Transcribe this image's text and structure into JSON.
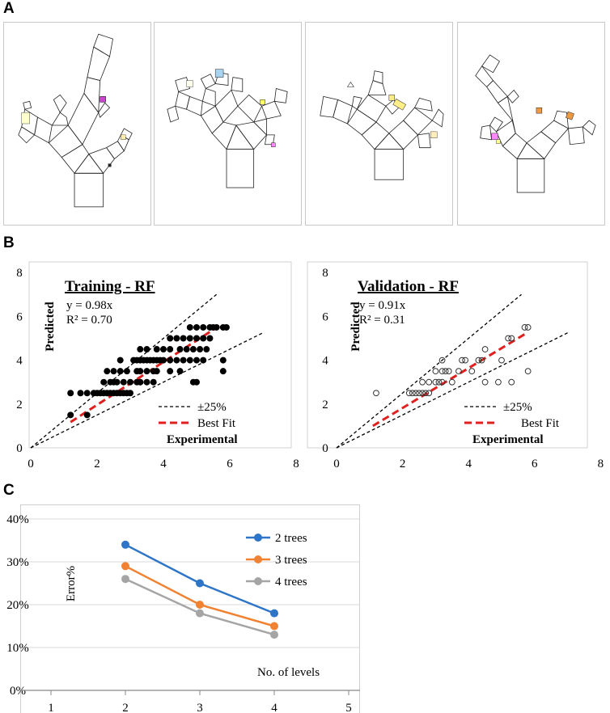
{
  "panels": {
    "a": "A",
    "b": "B",
    "c": "C"
  },
  "tree_images": [
    {
      "name": "tree-image-1",
      "highlight_colors": [
        "#cc44cc",
        "#ffffcc",
        "#ffeeaa"
      ]
    },
    {
      "name": "tree-image-2",
      "highlight_colors": [
        "#a8d4f0",
        "#ffff66",
        "#ff88ff"
      ]
    },
    {
      "name": "tree-image-3",
      "highlight_colors": [
        "#ffee88",
        "#ffffff",
        "#ffeebb"
      ]
    },
    {
      "name": "tree-image-4",
      "highlight_colors": [
        "#ff88ff",
        "#ee9944",
        "#ee9944"
      ]
    }
  ],
  "chart_data": [
    {
      "type": "scatter",
      "title": "Training - RF",
      "xlabel": "Experimental",
      "ylabel": "Predicted",
      "equation": "y = 0.98x",
      "r2": "R² = 0.70",
      "slope": 0.98,
      "xlim": [
        0,
        8
      ],
      "ylim": [
        0,
        8
      ],
      "xticks": [
        "0",
        "2",
        "4",
        "6",
        "8"
      ],
      "yticks": [
        "0",
        "2",
        "4",
        "6",
        "8"
      ],
      "marker": "filled",
      "legend": [
        {
          "label": "±25%",
          "style": "black-dashed"
        },
        {
          "label": "Best Fit",
          "style": "red-dashed"
        }
      ],
      "best_fit_range": [
        1.2,
        5.7
      ],
      "points": [
        [
          1.2,
          1.5
        ],
        [
          1.2,
          2.5
        ],
        [
          1.5,
          2.5
        ],
        [
          1.7,
          2.5
        ],
        [
          1.7,
          1.5
        ],
        [
          1.9,
          2.5
        ],
        [
          2.0,
          2.5
        ],
        [
          2.1,
          2.5
        ],
        [
          2.2,
          2.5
        ],
        [
          2.3,
          2.5
        ],
        [
          2.4,
          2.5
        ],
        [
          2.5,
          2.5
        ],
        [
          2.6,
          2.5
        ],
        [
          2.7,
          2.5
        ],
        [
          2.8,
          2.5
        ],
        [
          2.9,
          2.5
        ],
        [
          3.0,
          2.5
        ],
        [
          2.2,
          3.0
        ],
        [
          2.4,
          3.0
        ],
        [
          2.5,
          3.0
        ],
        [
          2.6,
          3.0
        ],
        [
          2.8,
          3.0
        ],
        [
          3.0,
          3.0
        ],
        [
          3.2,
          3.0
        ],
        [
          3.3,
          3.0
        ],
        [
          3.5,
          3.0
        ],
        [
          3.7,
          3.0
        ],
        [
          2.3,
          3.5
        ],
        [
          2.5,
          3.5
        ],
        [
          2.7,
          3.5
        ],
        [
          2.9,
          3.5
        ],
        [
          3.2,
          3.5
        ],
        [
          3.3,
          3.5
        ],
        [
          3.5,
          3.5
        ],
        [
          3.7,
          3.5
        ],
        [
          3.8,
          3.5
        ],
        [
          4.2,
          3.5
        ],
        [
          4.5,
          3.5
        ],
        [
          2.7,
          4.0
        ],
        [
          3.1,
          4.0
        ],
        [
          3.2,
          4.0
        ],
        [
          3.3,
          4.0
        ],
        [
          3.4,
          4.0
        ],
        [
          3.5,
          4.0
        ],
        [
          3.6,
          4.0
        ],
        [
          3.7,
          4.0
        ],
        [
          3.8,
          4.0
        ],
        [
          3.9,
          4.0
        ],
        [
          4.0,
          4.0
        ],
        [
          4.2,
          4.0
        ],
        [
          4.4,
          4.0
        ],
        [
          4.6,
          4.0
        ],
        [
          4.8,
          4.0
        ],
        [
          5.0,
          4.0
        ],
        [
          5.2,
          4.0
        ],
        [
          3.3,
          4.5
        ],
        [
          3.5,
          4.5
        ],
        [
          3.8,
          4.5
        ],
        [
          4.0,
          4.5
        ],
        [
          4.2,
          4.5
        ],
        [
          4.5,
          4.5
        ],
        [
          4.7,
          4.5
        ],
        [
          4.9,
          4.5
        ],
        [
          5.1,
          4.5
        ],
        [
          5.3,
          4.5
        ],
        [
          4.2,
          5.0
        ],
        [
          4.4,
          5.0
        ],
        [
          4.6,
          5.0
        ],
        [
          4.8,
          5.0
        ],
        [
          5.0,
          5.0
        ],
        [
          5.2,
          5.0
        ],
        [
          5.4,
          5.0
        ],
        [
          4.8,
          5.5
        ],
        [
          5.0,
          5.5
        ],
        [
          5.2,
          5.5
        ],
        [
          5.4,
          5.5
        ],
        [
          5.5,
          5.5
        ],
        [
          5.6,
          5.5
        ],
        [
          5.8,
          5.5
        ],
        [
          5.9,
          5.5
        ],
        [
          3.3,
          3.0
        ],
        [
          4.9,
          3.0
        ],
        [
          5.0,
          3.0
        ],
        [
          5.8,
          3.5
        ],
        [
          5.8,
          4.0
        ]
      ]
    },
    {
      "type": "scatter",
      "title": "Validation - RF",
      "xlabel": "Experimental",
      "ylabel": "Predicted",
      "equation": "y = 0.91x",
      "r2": "R² = 0.31",
      "slope": 0.91,
      "xlim": [
        0,
        8
      ],
      "ylim": [
        0,
        8
      ],
      "xticks": [
        "0",
        "2",
        "4",
        "6",
        "8"
      ],
      "yticks": [
        "0",
        "2",
        "4",
        "6",
        "8"
      ],
      "marker": "hollow",
      "legend": [
        {
          "label": "±25%",
          "style": "black-dashed"
        },
        {
          "label": "Best Fit",
          "style": "red-dashed"
        }
      ],
      "best_fit_range": [
        1.1,
        5.8
      ],
      "points": [
        [
          1.2,
          2.5
        ],
        [
          2.2,
          2.5
        ],
        [
          2.3,
          2.5
        ],
        [
          2.4,
          2.5
        ],
        [
          2.5,
          2.5
        ],
        [
          2.6,
          2.5
        ],
        [
          2.7,
          2.5
        ],
        [
          2.8,
          2.5
        ],
        [
          2.6,
          3.0
        ],
        [
          2.8,
          3.0
        ],
        [
          3.0,
          3.0
        ],
        [
          3.1,
          3.0
        ],
        [
          3.2,
          3.0
        ],
        [
          3.5,
          3.0
        ],
        [
          4.5,
          3.0
        ],
        [
          4.9,
          3.0
        ],
        [
          5.3,
          3.0
        ],
        [
          3.0,
          3.5
        ],
        [
          3.2,
          3.5
        ],
        [
          3.3,
          3.5
        ],
        [
          3.4,
          3.5
        ],
        [
          3.7,
          3.5
        ],
        [
          4.1,
          3.5
        ],
        [
          5.8,
          3.5
        ],
        [
          3.2,
          4.0
        ],
        [
          3.8,
          4.0
        ],
        [
          3.9,
          4.0
        ],
        [
          4.3,
          4.0
        ],
        [
          4.4,
          4.0
        ],
        [
          5.0,
          4.0
        ],
        [
          4.5,
          4.5
        ],
        [
          5.2,
          5.0
        ],
        [
          5.3,
          5.0
        ],
        [
          5.7,
          5.5
        ],
        [
          5.8,
          5.5
        ]
      ]
    },
    {
      "type": "line",
      "xlabel": "No. of levels",
      "ylabel": "Error%",
      "x": [
        2,
        3,
        4
      ],
      "xlim": [
        1,
        5
      ],
      "ylim": [
        0,
        40
      ],
      "xticks": [
        "1",
        "2",
        "3",
        "4",
        "5"
      ],
      "yticks": [
        "0%",
        "10%",
        "20%",
        "30%",
        "40%"
      ],
      "series": [
        {
          "name": "2 trees",
          "color": "#2e75c8",
          "values": [
            34,
            25,
            18
          ]
        },
        {
          "name": "3 trees",
          "color": "#f08232",
          "values": [
            29,
            20,
            15
          ]
        },
        {
          "name": "4 trees",
          "color": "#a5a5a5",
          "values": [
            26,
            18,
            13
          ]
        }
      ]
    }
  ]
}
